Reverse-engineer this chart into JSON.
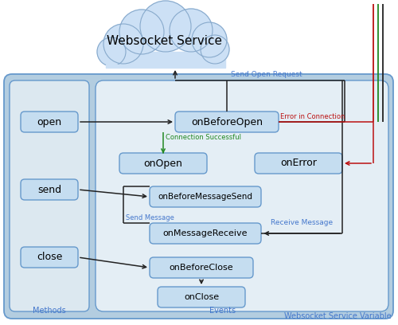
{
  "title": "Websocket Service",
  "bg_outer": "#b3cde0",
  "bg_methods": "#dce8f0",
  "bg_events": "#e4eef5",
  "box_fill": "#c5ddf0",
  "box_edge": "#6699cc",
  "cloud_fill": "#cce0f5",
  "cloud_edge": "#88aacc",
  "arrow_dark": "#222222",
  "green_color": "#228822",
  "red_color": "#bb1111",
  "blue_label": "#4477cc",
  "methods": [
    "open",
    "send",
    "close"
  ],
  "label_methods": "Methods",
  "label_events": "Events",
  "label_wsv": "Websocket Service Variable",
  "label_send_open": "Send Open Request",
  "label_conn_success": "Connection Successful",
  "label_error_conn": "Error in Connection",
  "label_send_msg": "Send Message",
  "label_recv_msg": "Receive Message"
}
